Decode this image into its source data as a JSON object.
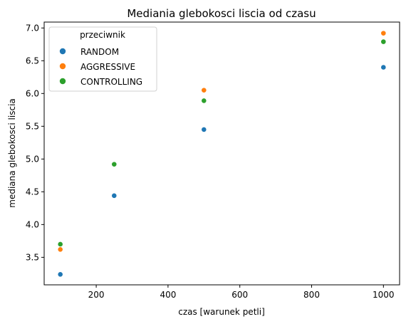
{
  "chart_data": {
    "type": "scatter",
    "title": "Mediania glebokosci liscia od czasu",
    "xlabel": "czas [warunek petli]",
    "ylabel": "mediana glebokosci liscia",
    "xlim": [
      55,
      1045
    ],
    "ylim": [
      3.08,
      7.09
    ],
    "xticks": [
      200,
      400,
      600,
      800,
      1000
    ],
    "xtick_labels": [
      "200",
      "400",
      "600",
      "800",
      "1000"
    ],
    "yticks": [
      3.5,
      4.0,
      4.5,
      5.0,
      5.5,
      6.0,
      6.5,
      7.0
    ],
    "ytick_labels": [
      "3.5",
      "4.0",
      "4.5",
      "5.0",
      "5.5",
      "6.0",
      "6.5",
      "7.0"
    ],
    "grid": false,
    "legend": {
      "title": "przeciwnik",
      "placement": "top-left"
    },
    "series": [
      {
        "name": "RANDOM",
        "color": "#1f77b4",
        "points": [
          {
            "x": 100,
            "y": 3.24
          },
          {
            "x": 250,
            "y": 4.44
          },
          {
            "x": 500,
            "y": 5.45
          },
          {
            "x": 1000,
            "y": 6.4
          }
        ]
      },
      {
        "name": "AGGRESSIVE",
        "color": "#ff7f0e",
        "points": [
          {
            "x": 100,
            "y": 3.62
          },
          {
            "x": 500,
            "y": 6.05
          },
          {
            "x": 1000,
            "y": 6.92
          }
        ]
      },
      {
        "name": "CONTROLLING",
        "color": "#2ca02c",
        "points": [
          {
            "x": 100,
            "y": 3.7
          },
          {
            "x": 250,
            "y": 4.92
          },
          {
            "x": 500,
            "y": 5.89
          },
          {
            "x": 1000,
            "y": 6.79
          }
        ]
      }
    ]
  }
}
